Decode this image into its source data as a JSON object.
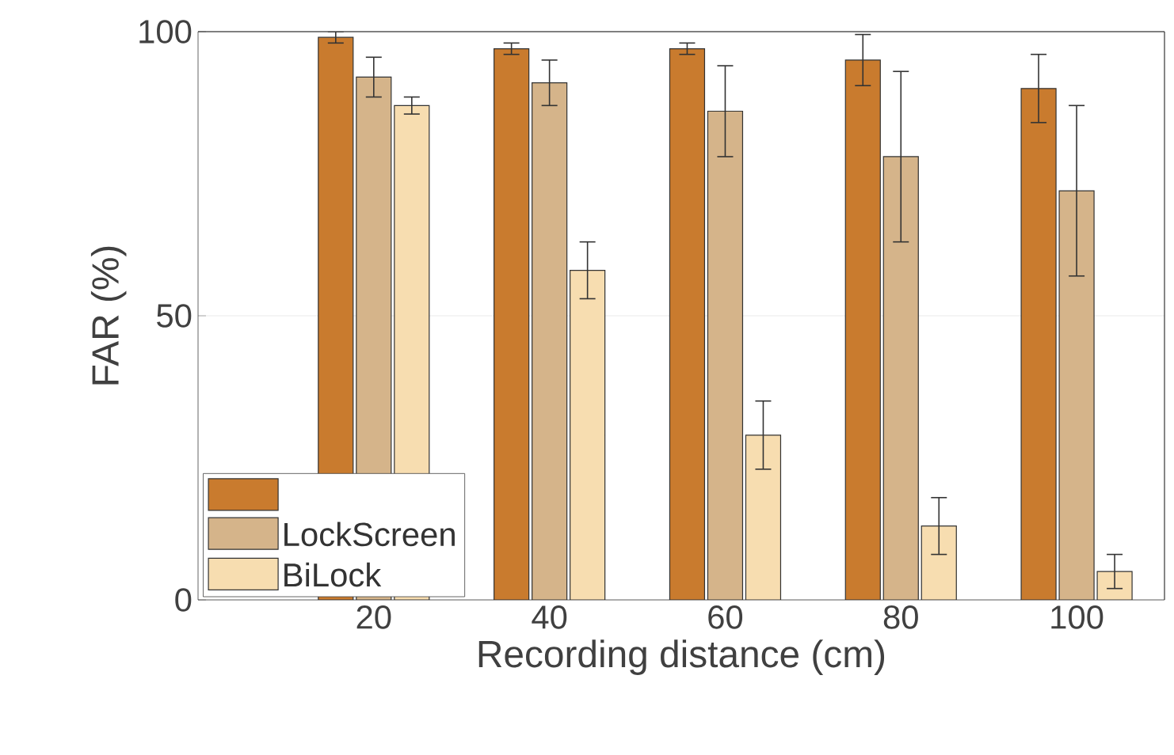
{
  "chart_data": {
    "type": "bar",
    "xlabel": "Recording distance (cm)",
    "ylabel": "FAR (%)",
    "categories": [
      "20",
      "40",
      "60",
      "80",
      "100"
    ],
    "series": [
      {
        "color": "#c97b2e",
        "values": [
          99,
          97,
          97,
          95,
          90
        ],
        "errors": [
          1,
          1,
          1,
          4.5,
          6
        ]
      },
      {
        "name": "LockScreen",
        "color": "#d5b48a",
        "values": [
          92,
          91,
          86,
          78,
          72
        ],
        "errors": [
          3.5,
          4,
          8,
          15,
          15
        ]
      },
      {
        "name": "BiLock",
        "color": "#f7ddb0",
        "values": [
          87,
          58,
          29,
          13,
          5
        ],
        "errors": [
          1.5,
          5,
          6,
          5,
          3
        ]
      }
    ],
    "ylim": [
      0,
      100
    ],
    "yticks": [
      0,
      50,
      100
    ],
    "grid": "y",
    "legend": "bottom left"
  }
}
